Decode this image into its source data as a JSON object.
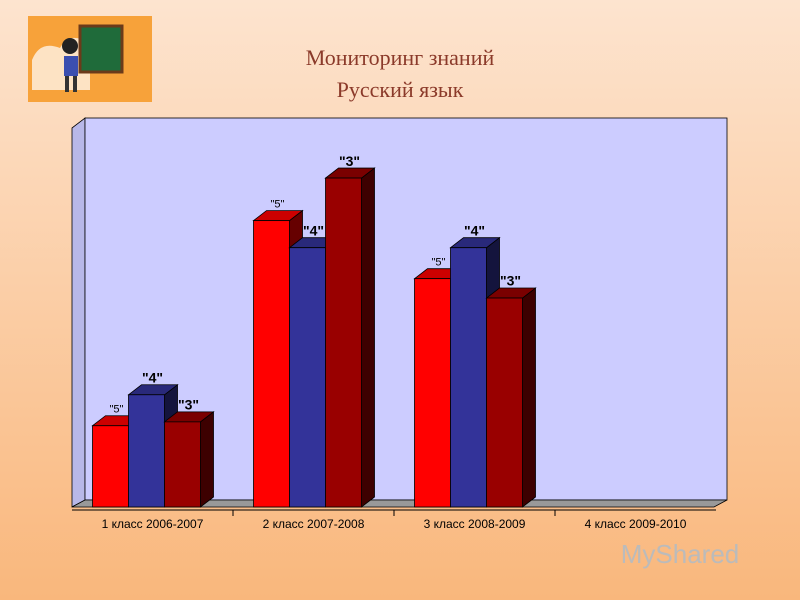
{
  "chart_data": {
    "type": "bar3d",
    "title": "Мониторинг знаний",
    "subtitle": "Русский язык",
    "categories": [
      "1 класс 2006-2007",
      "2 класс 2007-2008",
      "3 класс 2008-2009",
      "4 класс 2009-2010"
    ],
    "series": [
      {
        "name": "\"5\"",
        "color": "#ff0000",
        "values": [
          21,
          74,
          59,
          null
        ]
      },
      {
        "name": "\"4\"",
        "color": "#333399",
        "values": [
          29,
          67,
          67,
          null
        ]
      },
      {
        "name": "\"3\"",
        "color": "#990000",
        "values": [
          22,
          85,
          54,
          null
        ]
      }
    ],
    "ylim": [
      0,
      100
    ],
    "watermark": "MyShared"
  }
}
